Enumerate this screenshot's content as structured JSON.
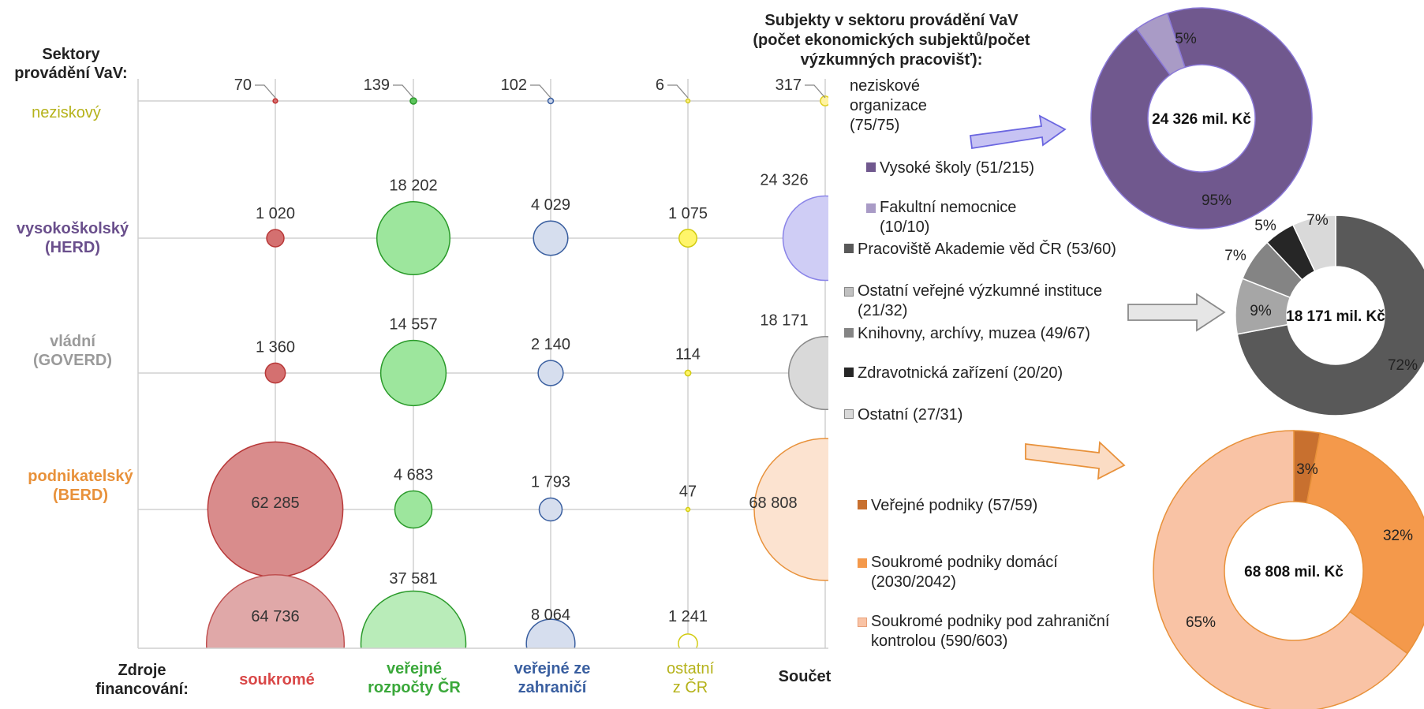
{
  "labels": {
    "sectors_header": "Sektory\nprovádění VaV:",
    "sources_header": "Zdroje\nfinancování:",
    "subjects_title": "Subjekty v sektoru provádění VaV\n(počet ekonomických subjektů/počet\nvýzkumných pracovišť):"
  },
  "rows": [
    {
      "id": "neziskovy",
      "label": "neziskový",
      "color": "#b5b21a"
    },
    {
      "id": "herd",
      "label": "vysokoškolský\n(HERD)",
      "color": "#6a4f8c"
    },
    {
      "id": "goverd",
      "label": "vládní\n(GOVERD)",
      "color": "#9a9a9a"
    },
    {
      "id": "berd",
      "label": "podnikatelský\n(BERD)",
      "color": "#e8913a"
    }
  ],
  "columns": [
    {
      "id": "soukrome",
      "label": "soukromé",
      "color": "#d94848"
    },
    {
      "id": "verejne_cr",
      "label": "veřejné\nrozpočty ČR",
      "color": "#3aa83a"
    },
    {
      "id": "verejne_zahr",
      "label": "veřejné ze\nzahraničí",
      "color": "#3a5fa0"
    },
    {
      "id": "ostatni_cr",
      "label": "ostatní\nz ČR",
      "color": "#b5b21a"
    },
    {
      "id": "soucet",
      "label": "Součet",
      "color": "#222222"
    }
  ],
  "chart_data": [
    {
      "type": "scatter",
      "subtype": "bubble",
      "title": "",
      "xlabel": "Zdroje financování:",
      "ylabel": "Sektory provádění VaV:",
      "categories_x": [
        "soukromé",
        "veřejné rozpočty ČR",
        "veřejné ze zahraničí",
        "ostatní z ČR",
        "Součet"
      ],
      "categories_y": [
        "neziskový",
        "vysokoškolský (HERD)",
        "vládní (GOVERD)",
        "podnikatelský (BERD)",
        "Součet"
      ],
      "grid": true,
      "matrix": [
        [
          "70",
          "139",
          "102",
          "6",
          "317"
        ],
        [
          "1 020",
          "18 202",
          "4 029",
          "1 075",
          "24 326"
        ],
        [
          "1 360",
          "14 557",
          "2 140",
          "114",
          "18 171"
        ],
        [
          "62 285",
          "4 683",
          "1 793",
          "47",
          "68 808"
        ],
        [
          "64 736",
          "37 581",
          "8 064",
          "1 241",
          ""
        ]
      ],
      "values": [
        [
          70,
          139,
          102,
          6,
          317
        ],
        [
          1020,
          18202,
          4029,
          1075,
          24326
        ],
        [
          1360,
          14557,
          2140,
          114,
          18171
        ],
        [
          62285,
          4683,
          1793,
          47,
          68808
        ],
        [
          64736,
          37581,
          8064,
          1241,
          null
        ]
      ]
    },
    {
      "type": "pie",
      "subtype": "donut",
      "center_label": "24 326 mil. Kč",
      "slices": [
        {
          "name": "Vysoké školy (51/215)",
          "value": 95,
          "label": "95%",
          "color": "#70588e"
        },
        {
          "name": "Fakultní nemocnice\n(10/10)",
          "value": 5,
          "label": "5%",
          "color": "#a99bc6"
        }
      ]
    },
    {
      "type": "pie",
      "subtype": "donut",
      "center_label": "18 171 mil. Kč",
      "slices": [
        {
          "name": "Pracoviště Akademie věd ČR (53/60)",
          "value": 72,
          "label": "72%",
          "color": "#595959"
        },
        {
          "name": "Ostatní veřejné výzkumné instituce\n(21/32)",
          "value": 9,
          "label": "9%",
          "color": "#a6a6a6"
        },
        {
          "name": "Knihovny, archívy, muzea (49/67)",
          "value": 7,
          "label": "7%",
          "color": "#848484"
        },
        {
          "name": "Zdravotnická zařízení (20/20)",
          "value": 5,
          "label": "5%",
          "color": "#262626"
        },
        {
          "name": "Ostatní (27/31)",
          "value": 7,
          "label": "7%",
          "color": "#d9d9d9"
        }
      ]
    },
    {
      "type": "pie",
      "subtype": "donut",
      "center_label": "68 808 mil. Kč",
      "slices": [
        {
          "name": "Veřejné podniky (57/59)",
          "value": 3,
          "label": "3%",
          "color": "#c8702f"
        },
        {
          "name": "Soukromé podniky domácí\n(2030/2042)",
          "value": 32,
          "label": "32%",
          "color": "#f4994b"
        },
        {
          "name": "Soukromé podniky pod zahraniční\nkontrolou (590/603)",
          "value": 65,
          "label": "65%",
          "color": "#f9c3a5"
        }
      ]
    }
  ],
  "nonprofit_legend": "neziskové\norganizace\n(75/75)"
}
